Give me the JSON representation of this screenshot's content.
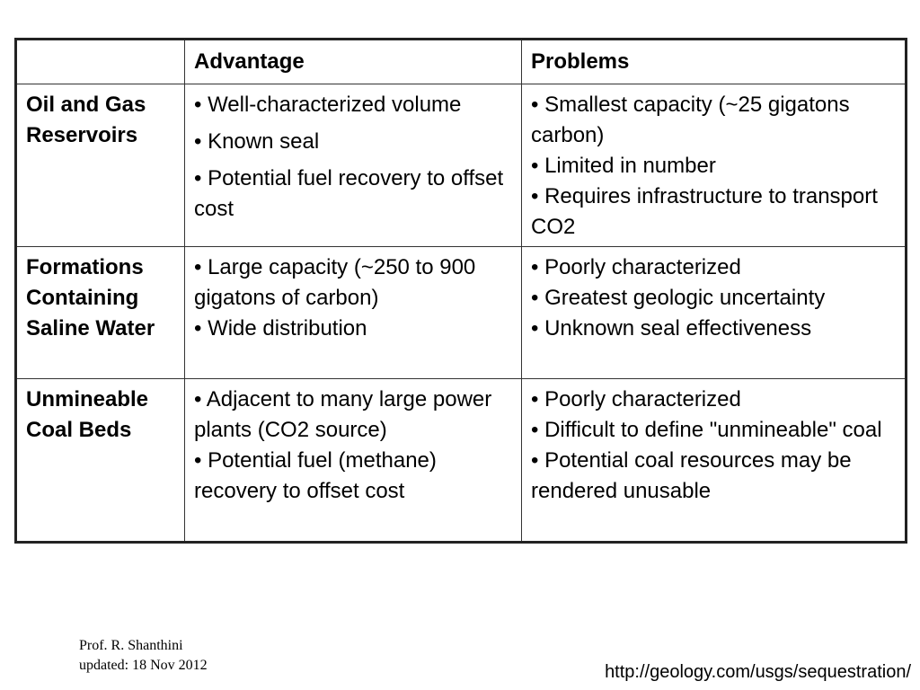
{
  "table": {
    "header": [
      "",
      "Advantage",
      "Problems"
    ],
    "rows": [
      {
        "label": "Oil and Gas Reservoirs",
        "advantage": [
          "• Well-characterized volume",
          "• Known seal",
          "• Potential fuel recovery to offset cost"
        ],
        "problems": [
          "• Smallest capacity (~25 gigatons carbon)",
          "• Limited in number",
          "• Requires infrastructure to transport CO2"
        ]
      },
      {
        "label": "Formations Containing Saline Water",
        "advantage": [
          "• Large capacity (~250 to 900 gigatons of carbon)",
          "• Wide distribution"
        ],
        "problems": [
          "• Poorly characterized",
          "• Greatest geologic uncertainty",
          "• Unknown seal effectiveness"
        ]
      },
      {
        "label": "Unmineable Coal Beds",
        "advantage": [
          "• Adjacent to many large power plants (CO2 source)",
          "• Potential fuel (methane) recovery to offset cost"
        ],
        "problems": [
          "• Poorly characterized",
          "• Difficult to define \"unmineable\" coal",
          "• Potential coal resources may be rendered unusable"
        ]
      }
    ]
  },
  "footer": {
    "author": "Prof. R. Shanthini",
    "updated": "updated: 18 Nov 2012",
    "url": "http://geology.com/usgs/sequestration/"
  }
}
